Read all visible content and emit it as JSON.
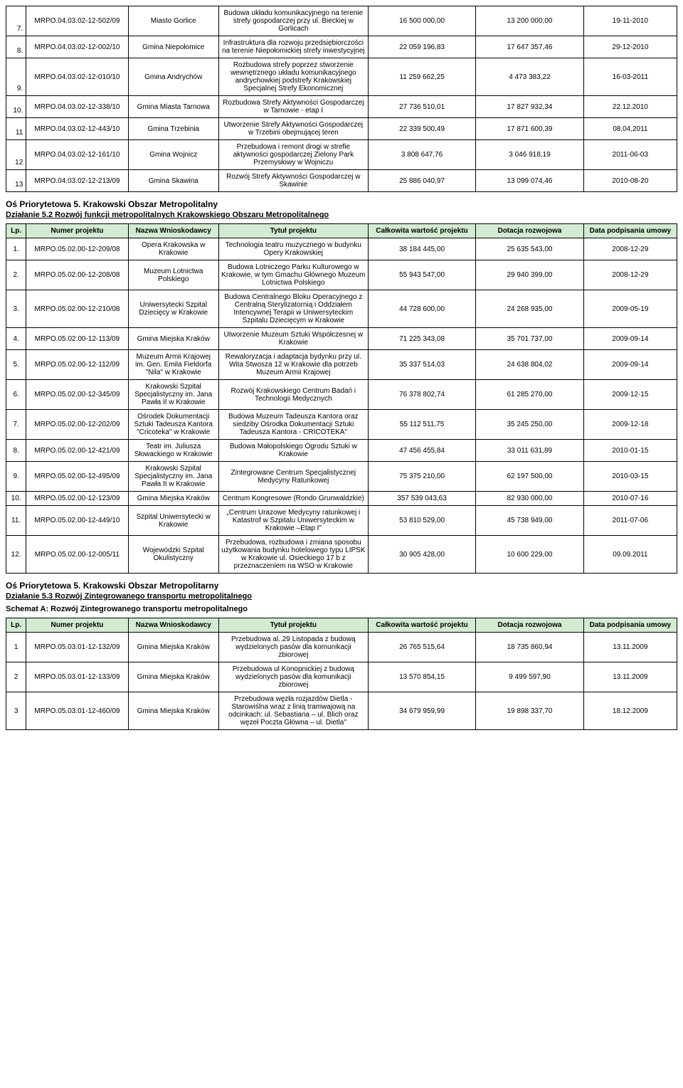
{
  "colors": {
    "header_bg": "#d2ecd2",
    "border": "#000000",
    "background": "#ffffff",
    "text": "#000000"
  },
  "columns": {
    "lp": "Lp.",
    "num": "Numer projektu",
    "appl": "Nazwa Wnioskodawcy",
    "title": "Tytuł projektu",
    "total": "Całkowita wartość projektu",
    "grant": "Dotacja rozwojowa",
    "date": "Data podpisania umowy"
  },
  "table1": {
    "rows": [
      {
        "lp": "7.",
        "num": "MRPO.04.03.02-12-502/09",
        "appl": "Miasto Gorlice",
        "title": "Budowa układu komunikacyjnego na terenie strefy gospodarczej przy ul. Bieckiej w Gorlicach",
        "total": "16 500 000,00",
        "grant": "13 200 000,00",
        "date": "19-11-2010"
      },
      {
        "lp": "8.",
        "num": "MRPO.04.03.02-12-002/10",
        "appl": "Gmina Niepołomice",
        "title": "Infrastruktura dla rozwoju przedsiębiorczości na terenie Niepołomickiej strefy inwestycyjnej",
        "total": "22 059 196,83",
        "grant": "17 647 357,46",
        "date": "29-12-2010"
      },
      {
        "lp": "9.",
        "num": "MRPO.04.03.02-12-010/10",
        "appl": "Gmina Andrychów",
        "title": "Rozbudowa strefy poprzez stworzenie wewnętrznego układu komunikacyjnego andrychowkiej podstrefy Krakowskiej Specjalnej Strefy Ekonomicznej",
        "total": "11 259 662,25",
        "grant": "4 473 383,22",
        "date": "16-03-2011"
      },
      {
        "lp": "10.",
        "num": "MRPO.04.03.02-12-338/10",
        "appl": "Gmina Miasta Tarnowa",
        "title": "Rozbudowa Strefy Aktywności Gospodarczej w Tarnowie - etap I",
        "total": "27 736 510,01",
        "grant": "17 827 932,34",
        "date": "22.12.2010"
      },
      {
        "lp": "11",
        "num": "MRPO.04.03.02-12-443/10",
        "appl": "Gmina Trzebinia",
        "title": "Utworzenie Strefy Aktywności Gospodarczej w Trzebini obejmującej teren",
        "total": "22 339 500,49",
        "grant": "17 871 600,39",
        "date": "08,04,2011"
      },
      {
        "lp": "12",
        "num": "MRPO.04.03.02-12-161/10",
        "appl": "Gmina Wojnicz",
        "title": "Przebudowa i remont drogi w strefie aktywności gospodarczej Zielony Park Przemysłowy w Wojniczu",
        "total": "3 808 647,76",
        "grant": "3 046 918,19",
        "date": "2011-06-03"
      },
      {
        "lp": "13",
        "num": "MRPO.04.03.02-12-213/09",
        "appl": "Gmina Skawina",
        "title": "Rozwój Strefy Aktywności Gospodarczej w Skawinie",
        "total": "25 886 040,97",
        "grant": "13 099 074,46",
        "date": "2010-08-20"
      }
    ]
  },
  "section2": {
    "heading": "Oś Priorytetowa 5. Krakowski Obszar Metropolitalny",
    "sub": "Działanie 5.2 Rozwój funkcji metropolitalnych Krakowskiego Obszaru Metropolitalnego",
    "rows": [
      {
        "lp": "1.",
        "num": "MRPO.05.02.00-12-209/08",
        "appl": "Opera Krakowska w Krakowie",
        "title": "Technologia teatru muzycznego w budynku Opery Krakowskiej",
        "total": "38 184 445,00",
        "grant": "25 635 543,00",
        "date": "2008-12-29"
      },
      {
        "lp": "2.",
        "num": "MRPO.05.02.00-12-208/08",
        "appl": "Muzeum Lotnictwa Polskiego",
        "title": "Budowa Lotniczego Parku Kulturowego w Krakowie, w tym Gmachu Głównego Muzeum Lotnictwa Polskiego",
        "total": "55 943 547,00",
        "grant": "29 940 399,00",
        "date": "2008-12-29"
      },
      {
        "lp": "3.",
        "num": "MRPO.05.02.00-12-210/08",
        "appl": "Uniwersytecki Szpital Dziecięcy w Krakowie",
        "title": "Budowa Centralnego Bloku Operacyjnego z Centralną Sterylizatornią i Oddziałem Intencywnej Terapii w Uniwersyteckim Szpitalu Dziecięcym w Krakowie",
        "total": "44 728 600,00",
        "grant": "24 268 935,00",
        "date": "2009-05-19"
      },
      {
        "lp": "4.",
        "num": "MRPO.05.02.00-12-113/09",
        "appl": "Gmina Miejska Kraków",
        "title": "Utworzenie Muzeum Sztuki Współczesnej w Krakowie",
        "total": "71 225 343,08",
        "grant": "35 701 737,00",
        "date": "2009-09-14"
      },
      {
        "lp": "5.",
        "num": "MRPO.05.02.00-12-112/09",
        "appl": "Muzeum Armii Krajowej im. Gen. Emila Fieldorfa \"Nila\" w Krakowie",
        "title": "Rewaloryzacja i adaptacja bydynku przy ul. Wita Stwosza 12 w Krakowie dla potrzeb Muzeum Armii Krajowej",
        "total": "35 337 514,03",
        "grant": "24 638 804,02",
        "date": "2009-09-14"
      },
      {
        "lp": "6.",
        "num": "MRPO.05.02.00-12-345/09",
        "appl": "Krakowski Szpital Specjalistyczny im. Jana Pawła II w Krakowie",
        "title": "Rozwój Krakowskiego Centrum Badań i Technologii Medycznych",
        "total": "76 378 802,74",
        "grant": "61 285 270,00",
        "date": "2009-12-15"
      },
      {
        "lp": "7.",
        "num": "MRPO.05.02.00-12-202/09",
        "appl": "Ośrodek Dokumentacji Sztuki Tadeusza Kantora \"Cricoteka\" w Krakowie",
        "title": "Budowa Muzeum Tadeusza Kantora oraz siedziby Ośrodka Dokumentacji Sztuki Tadeusza Kantora - CRICOTEKA\"",
        "total": "55 112 511,75",
        "grant": "35 245 250,00",
        "date": "2009-12-18"
      },
      {
        "lp": "8.",
        "num": "MRPO.05.02.00-12-421/09",
        "appl": "Teatr im. Juliusza Słowackiego w Krakowie",
        "title": "Budowa Małopolskiego Ogrodu Sztuki w Krakowie",
        "total": "47 456 455,84",
        "grant": "33 011 631,89",
        "date": "2010-01-15"
      },
      {
        "lp": "9.",
        "num": "MRPO.05.02.00-12-495/09",
        "appl": "Krakowski Szpital Specjalistyczny im. Jana Pawła II w Krakowie",
        "title": "Zintegrowane Centrum Specjalistycznej Medycyny Ratunkowej",
        "total": "75 375 210,00",
        "grant": "62 197 500,00",
        "date": "2010-03-15"
      },
      {
        "lp": "10.",
        "num": "MRPO.05.02.00-12-123/09",
        "appl": "Gmina Miejska Kraków",
        "title": "Centrum Kongresowe (Rondo Grunwaldzkie)",
        "total": "357 539 043,63",
        "grant": "82 930 000,00",
        "date": "2010-07-16"
      },
      {
        "lp": "11.",
        "num": "MRPO.05.02.00-12-449/10",
        "appl": "Szpital Uniwersytecki w Krakowie",
        "title": "„Centrum Urazowe Medycyny ratunkowej i Katastrof w Szpitalu Uniwersyteckim w Krakowie –Etap I\"",
        "total": "53 810 529,00",
        "grant": "45 738 949,00",
        "date": "2011-07-06"
      },
      {
        "lp": "12.",
        "num": "MRPO.05.02.00-12-005/11",
        "appl": "Wojewódzki Szpital Okulistyczny",
        "title": "Przebudowa, rozbudowa i zmiana sposobu użytkowania budynku hotelowego typu LIPSK w Krakowie ul. Osieckiego 17 b z przeznaczeniem na WSO w Krakowie",
        "total": "30 905 428,00",
        "grant": "10 600 229,00",
        "date": "09.09.2011"
      }
    ]
  },
  "section3": {
    "heading": "Oś Priorytetowa 5. Krakowski Obszar Metropolitarny",
    "sub": "Działanie 5.3 Rozwój Zintegrowanego transportu metropolitalnego",
    "schemat": "Schemat A: Rozwój Zintegrowanego transportu metropolitalnego",
    "rows": [
      {
        "lp": "1",
        "num": "MRPO.05.03.01-12-132/09",
        "appl": "Gmina Miejska Kraków",
        "title": "Przebudowa al..29 Listopada z budową wydzielonych pasów dla komunikacji zbiorowej",
        "total": "26 765 515,64",
        "grant": "18 735 860,94",
        "date": "13.11.2009"
      },
      {
        "lp": "2",
        "num": "MRPO.05.03.01-12-133/09",
        "appl": "Gmina Miejska Kraków",
        "title": "Przebudowa ul Konopnickiej z budową wydzielonych pasów dla komunikacji zbiorowej",
        "total": "13 570 854,15",
        "grant": "9 499 597,90",
        "date": "13.11.2009"
      },
      {
        "lp": "3",
        "num": "MRPO.05.03.01-12-460/09",
        "appl": "Gmina Miejska Kraków",
        "title": "Przebudowa węzła rozjazdów Dietla - Starowiślna wraz z linią tramwajową na odcinkach:  ul. Sebastiana – ul. Blich oraz węzeł Poczta Główna – ul. Dietla\"",
        "total": "34 679 959,99",
        "grant": "19 898 337,70",
        "date": "18.12.2009"
      }
    ]
  }
}
